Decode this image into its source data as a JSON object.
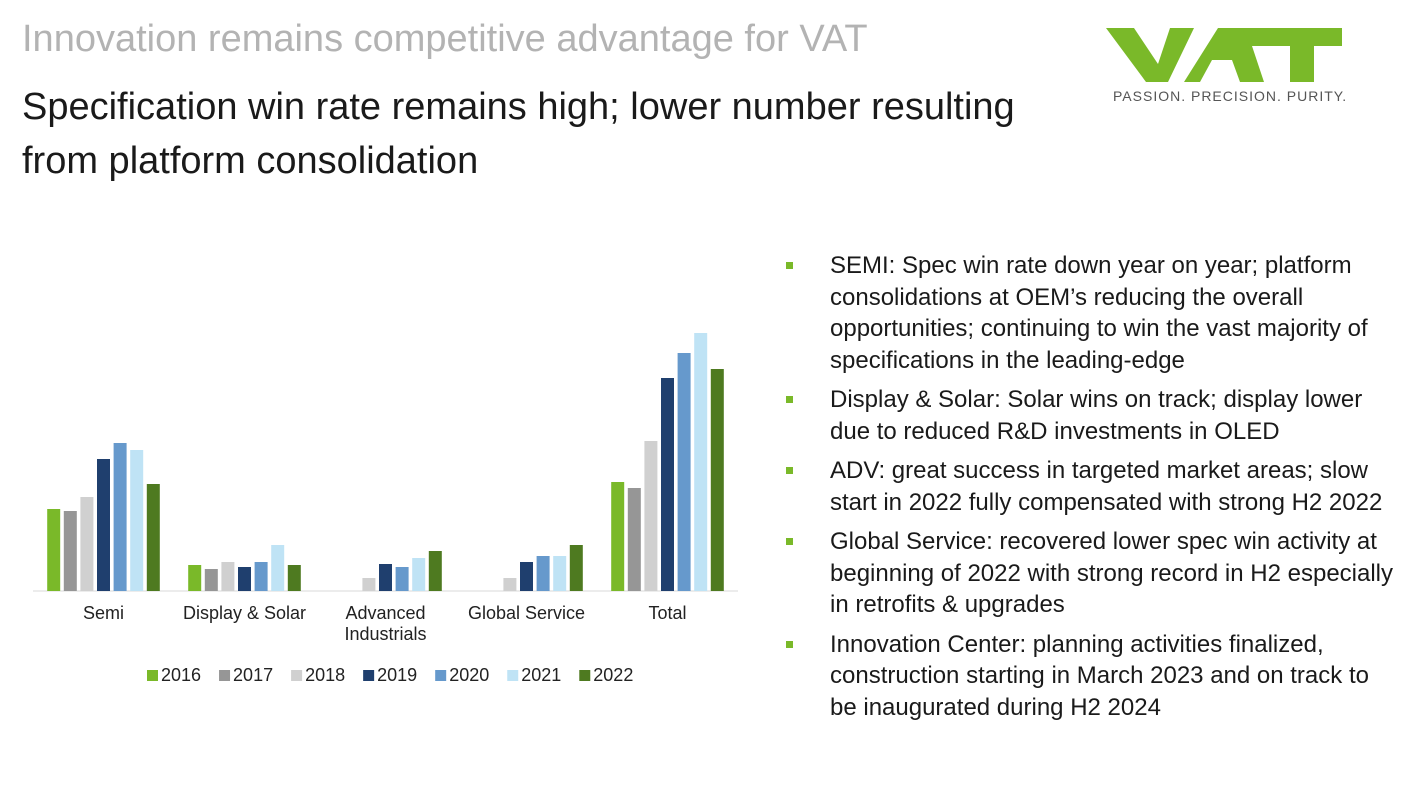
{
  "header": {
    "title": "Innovation remains competitive advantage for VAT",
    "subtitle": "Specification win rate remains high; lower number resulting from platform consolidation"
  },
  "logo": {
    "tagline": "PASSION. PRECISION. PURITY."
  },
  "chart_data": {
    "type": "bar",
    "categories": [
      "Semi",
      "Display & Solar",
      "Advanced Industrials",
      "Global Service",
      "Total"
    ],
    "series": [
      {
        "name": "2016",
        "color": "#7ab929",
        "values": [
          82,
          26,
          null,
          null,
          109
        ]
      },
      {
        "name": "2017",
        "color": "#969696",
        "values": [
          80,
          22,
          null,
          null,
          103
        ]
      },
      {
        "name": "2018",
        "color": "#d0d0d0",
        "values": [
          94,
          29,
          13,
          13,
          150
        ]
      },
      {
        "name": "2019",
        "color": "#1f3f6e",
        "values": [
          132,
          24,
          27,
          29,
          213
        ]
      },
      {
        "name": "2020",
        "color": "#6699cc",
        "values": [
          148,
          29,
          24,
          35,
          238
        ]
      },
      {
        "name": "2021",
        "color": "#bfe3f5",
        "values": [
          141,
          46,
          33,
          35,
          258
        ]
      },
      {
        "name": "2022",
        "color": "#4e7a20",
        "values": [
          107,
          26,
          40,
          46,
          222
        ]
      }
    ]
  },
  "bullets": [
    "SEMI: Spec win rate down year on year; platform consolidations at OEM’s reducing the overall opportunities; continuing to win the vast majority of specifications in the leading-edge",
    "Display & Solar: Solar wins on track; display lower due to reduced R&D investments in OLED",
    "ADV: great success in targeted market areas; slow start in 2022 fully compensated with strong H2 2022",
    "Global Service: recovered lower spec win activity at beginning of 2022 with strong record in H2 especially in retrofits & upgrades",
    "Innovation Center: planning activities finalized, construction starting in March 2023 and on track to be inaugurated during H2 2024"
  ]
}
